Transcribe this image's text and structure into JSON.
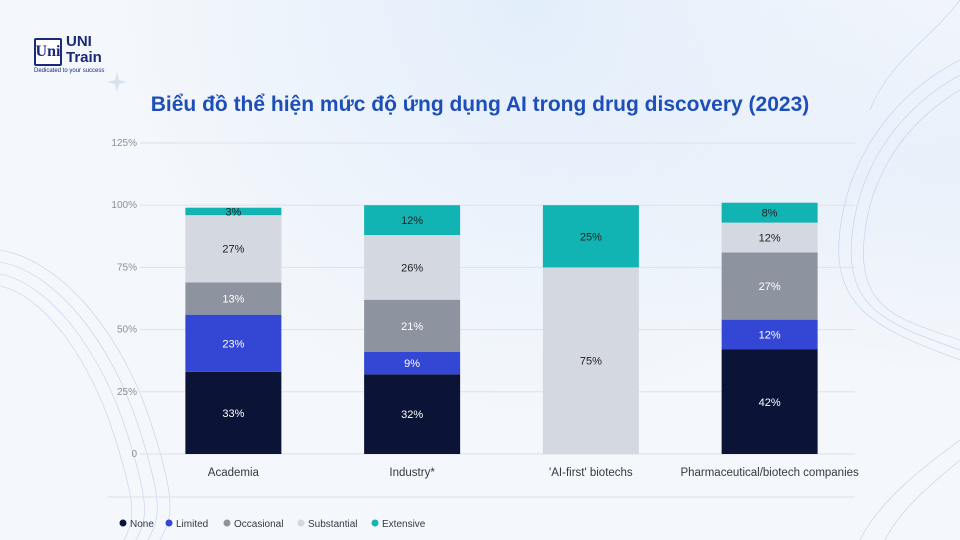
{
  "logo": {
    "mark": "Uni",
    "name": "UNI\nTrain",
    "tagline": "Dedicated to your success"
  },
  "title": "Biểu đồ thể hiện mức độ ứng dụng AI trong drug discovery (2023)",
  "chart_data": {
    "type": "bar",
    "stacked": true,
    "title": "Biểu đồ thể hiện mức độ ứng dụng AI trong drug discovery (2023)",
    "xlabel": "",
    "ylabel": "",
    "ylim": [
      0,
      125
    ],
    "yticks": [
      0,
      25,
      50,
      75,
      100,
      125
    ],
    "ytick_labels": [
      "0",
      "25%",
      "50%",
      "75%",
      "100%",
      "125%"
    ],
    "grid": true,
    "legend_position": "bottom-left",
    "categories": [
      "Academia",
      "Industry*",
      "'AI-first' biotechs",
      "Pharmaceutical/biotech companies"
    ],
    "series": [
      {
        "name": "None",
        "color": "#0b1437",
        "label_color": "#ffffff",
        "values": [
          33,
          32,
          0,
          42
        ],
        "labels": [
          "33%",
          "32%",
          "",
          "42%"
        ]
      },
      {
        "name": "Limited",
        "color": "#3346d4",
        "label_color": "#ffffff",
        "values": [
          23,
          9,
          0,
          12
        ],
        "labels": [
          "23%",
          "9%",
          "",
          "12%"
        ]
      },
      {
        "name": "Occasional",
        "color": "#8d949f",
        "label_color": "#ffffff",
        "values": [
          13,
          21,
          0,
          27
        ],
        "labels": [
          "13%",
          "21%",
          "",
          "27%"
        ]
      },
      {
        "name": "Substantial",
        "color": "#d4d8e0",
        "label_color": "#222222",
        "values": [
          27,
          26,
          75,
          12
        ],
        "labels": [
          "27%",
          "26%",
          "75%",
          "12%"
        ]
      },
      {
        "name": "Extensive",
        "color": "#12b3b3",
        "label_color": "#222222",
        "values": [
          3,
          12,
          25,
          8
        ],
        "labels": [
          "3%",
          "12%",
          "25%",
          "8%"
        ]
      }
    ]
  }
}
